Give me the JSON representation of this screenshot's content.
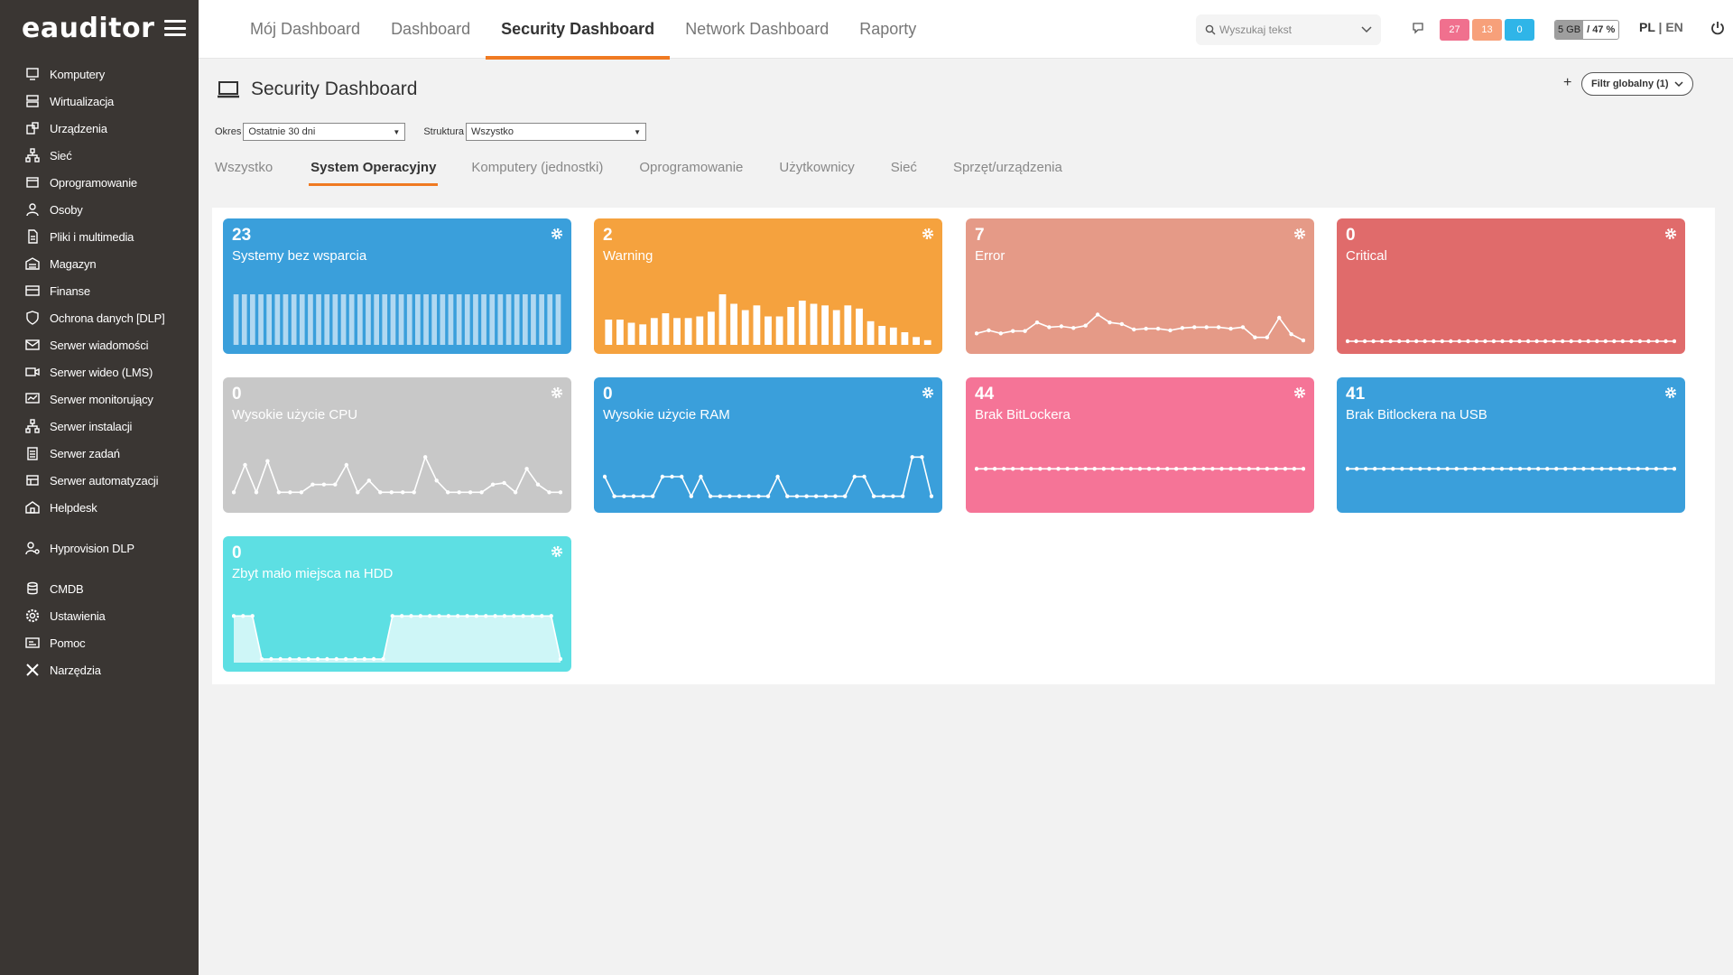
{
  "app": {
    "logo": "eauditor"
  },
  "sidebar": {
    "items": [
      {
        "label": "Komputery",
        "icon": "computer-icon"
      },
      {
        "label": "Wirtualizacja",
        "icon": "server-icon"
      },
      {
        "label": "Urządzenia",
        "icon": "devices-icon"
      },
      {
        "label": "Sieć",
        "icon": "network-icon"
      },
      {
        "label": "Oprogramowanie",
        "icon": "software-icon"
      },
      {
        "label": "Osoby",
        "icon": "people-icon"
      },
      {
        "label": "Pliki i multimedia",
        "icon": "file-icon"
      },
      {
        "label": "Magazyn",
        "icon": "warehouse-icon"
      },
      {
        "label": "Finanse",
        "icon": "card-icon"
      },
      {
        "label": "Ochrona danych [DLP]",
        "icon": "shield-icon"
      },
      {
        "label": "Serwer wiadomości",
        "icon": "mail-icon"
      },
      {
        "label": "Serwer wideo (LMS)",
        "icon": "video-icon"
      },
      {
        "label": "Serwer monitorujący",
        "icon": "monitor-icon"
      },
      {
        "label": "Serwer instalacji",
        "icon": "install-icon"
      },
      {
        "label": "Serwer zadań",
        "icon": "tasks-icon"
      },
      {
        "label": "Serwer automatyzacji",
        "icon": "automation-icon"
      },
      {
        "label": "Helpdesk",
        "icon": "helpdesk-icon"
      }
    ],
    "items2": [
      {
        "label": "Hyprovision DLP",
        "icon": "user-gear-icon"
      }
    ],
    "items3": [
      {
        "label": "CMDB",
        "icon": "database-icon"
      },
      {
        "label": "Ustawienia",
        "icon": "gear-icon"
      },
      {
        "label": "Pomoc",
        "icon": "help-icon"
      },
      {
        "label": "Narzędzia",
        "icon": "tools-icon"
      }
    ]
  },
  "header": {
    "tabs": [
      "Mój Dashboard",
      "Dashboard",
      "Security Dashboard",
      "Network Dashboard",
      "Raporty"
    ],
    "active_tab": "Security Dashboard",
    "search_placeholder": "Wyszukaj tekst",
    "badges": [
      {
        "value": "27",
        "color": "#f0708e"
      },
      {
        "value": "13",
        "color": "#f7a07a"
      },
      {
        "value": "0",
        "color": "#2fb5e8"
      }
    ],
    "storage_used": "5 GB",
    "storage_pct": "/ 47 %",
    "lang_pl": "PL",
    "lang_sep": " | ",
    "lang_en": "EN"
  },
  "page": {
    "title": "Security Dashboard",
    "add_label": "+",
    "global_filter": "Filtr globalny (1)",
    "okres_label": "Okres",
    "okres_value": "Ostatnie 30 dni",
    "struktura_label": "Struktura",
    "struktura_value": "Wszystko",
    "subtabs": [
      "Wszystko",
      "System Operacyjny",
      "Komputery (jednostki)",
      "Oprogramowanie",
      "Użytkownicy",
      "Sieć",
      "Sprzęt/urządzenia"
    ],
    "active_subtab": "System Operacyjny"
  },
  "cards": [
    {
      "value": "23",
      "title": "Systemy bez wsparcia",
      "color": "#3a9fdb",
      "spark": "bar",
      "data": [
        30,
        30,
        30,
        30,
        30,
        30,
        30,
        30,
        30,
        30,
        30,
        30,
        30,
        30,
        30,
        30,
        30,
        30,
        30,
        30,
        30,
        30,
        30,
        30,
        30,
        30,
        30,
        30,
        30,
        30,
        30,
        30,
        30,
        30,
        30,
        30,
        30,
        30,
        30,
        30
      ]
    },
    {
      "value": "2",
      "title": "Warning",
      "color": "#f5a23e",
      "spark": "bar",
      "data": [
        16,
        16,
        14,
        13,
        17,
        20,
        17,
        17,
        18,
        21,
        32,
        26,
        22,
        25,
        18,
        18,
        24,
        28,
        26,
        25,
        22,
        25,
        23,
        15,
        12,
        11,
        8,
        5,
        3
      ]
    },
    {
      "value": "7",
      "title": "Error",
      "color": "#e59a87",
      "spark": "line",
      "data": [
        10,
        14,
        10,
        13,
        13,
        24,
        18,
        19,
        17,
        20,
        34,
        24,
        22,
        15,
        16,
        16,
        14,
        17,
        18,
        18,
        18,
        16,
        18,
        5,
        5,
        30,
        9,
        1
      ]
    },
    {
      "value": "0",
      "title": "Critical",
      "color": "#e06b6b",
      "spark": "line",
      "data": [
        0,
        0,
        0,
        0,
        0,
        0,
        0,
        0,
        0,
        0,
        0,
        0,
        0,
        0,
        0,
        0,
        0,
        0,
        0,
        0,
        0,
        0,
        0,
        0,
        0,
        0,
        0,
        0,
        0,
        0,
        0,
        0,
        0,
        0,
        0,
        0,
        0,
        0,
        0
      ]
    },
    {
      "value": "0",
      "title": "Wysokie użycie CPU",
      "color": "#c8c8c8",
      "spark": "line",
      "data": [
        10,
        45,
        10,
        50,
        10,
        10,
        10,
        20,
        20,
        20,
        45,
        10,
        25,
        10,
        10,
        10,
        10,
        55,
        25,
        10,
        10,
        10,
        10,
        20,
        22,
        10,
        40,
        20,
        10,
        10
      ]
    },
    {
      "value": "0",
      "title": "Wysokie użycie RAM",
      "color": "#3a9fdb",
      "spark": "line",
      "data": [
        30,
        5,
        5,
        5,
        5,
        5,
        30,
        30,
        30,
        5,
        30,
        5,
        5,
        5,
        5,
        5,
        5,
        5,
        30,
        5,
        5,
        5,
        5,
        5,
        5,
        5,
        30,
        30,
        5,
        5,
        5,
        5,
        55,
        55,
        5
      ]
    },
    {
      "value": "44",
      "title": "Brak BitLockera",
      "color": "#f57497",
      "spark": "line",
      "data": [
        40,
        40,
        40,
        40,
        40,
        40,
        40,
        40,
        40,
        40,
        40,
        40,
        40,
        40,
        40,
        40,
        40,
        40,
        40,
        40,
        40,
        40,
        40,
        40,
        40,
        40,
        40,
        40,
        40,
        40,
        40,
        40,
        40,
        40,
        40,
        40,
        40
      ]
    },
    {
      "value": "41",
      "title": "Brak Bitlockera na USB",
      "color": "#3a9fdb",
      "spark": "line",
      "data": [
        40,
        40,
        40,
        40,
        40,
        40,
        40,
        40,
        40,
        40,
        40,
        40,
        40,
        40,
        40,
        40,
        40,
        40,
        40,
        40,
        40,
        40,
        40,
        40,
        40,
        40,
        40,
        40,
        40,
        40,
        40,
        40,
        40,
        40,
        40,
        40,
        40
      ]
    },
    {
      "value": "0",
      "title": "Zbyt mało miejsca na HDD",
      "color": "#5ddfe3",
      "spark": "area",
      "data": [
        55,
        55,
        55,
        0,
        0,
        0,
        0,
        0,
        0,
        0,
        0,
        0,
        0,
        0,
        0,
        0,
        0,
        55,
        55,
        55,
        55,
        55,
        55,
        55,
        55,
        55,
        55,
        55,
        55,
        55,
        55,
        55,
        55,
        55,
        55,
        0
      ]
    }
  ]
}
